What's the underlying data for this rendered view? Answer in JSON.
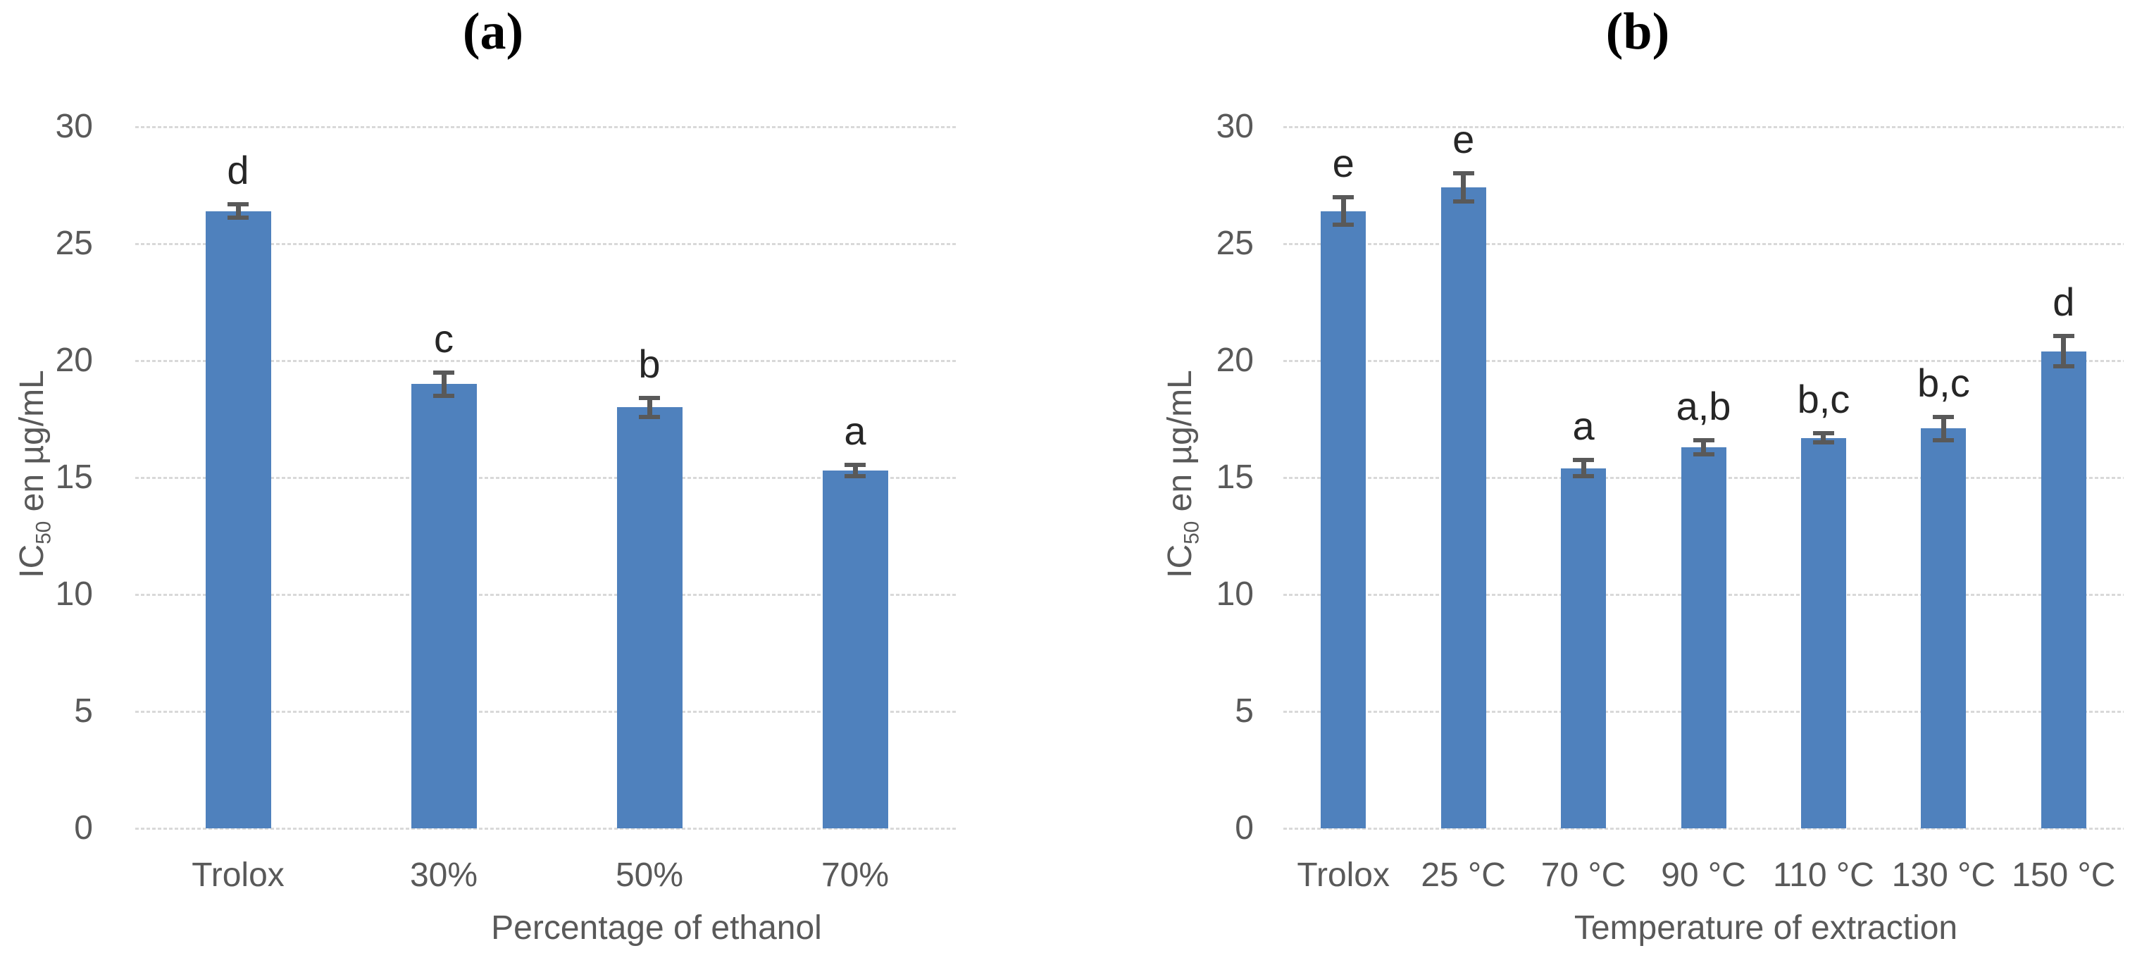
{
  "chart_data": [
    {
      "type": "bar",
      "title": "(a)",
      "categories": [
        "Trolox",
        "30%",
        "50%",
        "70%"
      ],
      "values": [
        26.4,
        19.0,
        18.0,
        15.3
      ],
      "error_bars": [
        0.3,
        0.5,
        0.4,
        0.25
      ],
      "significance_labels": [
        "d",
        "c",
        "b",
        "a"
      ],
      "xlabel": "Percentage of ethanol",
      "ylabel": {
        "prefix": "IC",
        "sub": "50",
        "suffix": " en µg/mL"
      },
      "ylim": [
        0,
        30
      ],
      "yticks": [
        0,
        5,
        10,
        15,
        20,
        25,
        30
      ],
      "grid": true,
      "legend": false,
      "bar_color": "#4f81bd",
      "error_bar_color": "#595959",
      "gridline_color": "#d9d9d9",
      "tick_text_color": "#595959"
    },
    {
      "type": "bar",
      "title": "(b)",
      "categories": [
        "Trolox",
        "25 °C",
        "70 °C",
        "90 °C",
        "110 °C",
        "130 °C",
        "150 °C"
      ],
      "values": [
        26.4,
        27.4,
        15.4,
        16.3,
        16.7,
        17.1,
        20.4
      ],
      "error_bars": [
        0.6,
        0.6,
        0.35,
        0.3,
        0.2,
        0.5,
        0.65
      ],
      "significance_labels": [
        "e",
        "e",
        "a",
        "a,b",
        "b,c",
        "b,c",
        "d"
      ],
      "xlabel": "Temperature of extraction",
      "ylabel": {
        "prefix": "IC",
        "sub": "50",
        "suffix": " en µg/mL"
      },
      "ylim": [
        0,
        30
      ],
      "yticks": [
        0,
        5,
        10,
        15,
        20,
        25,
        30
      ],
      "grid": true,
      "legend": false,
      "bar_color": "#4f81bd",
      "error_bar_color": "#595959",
      "gridline_color": "#d9d9d9",
      "tick_text_color": "#595959"
    }
  ]
}
